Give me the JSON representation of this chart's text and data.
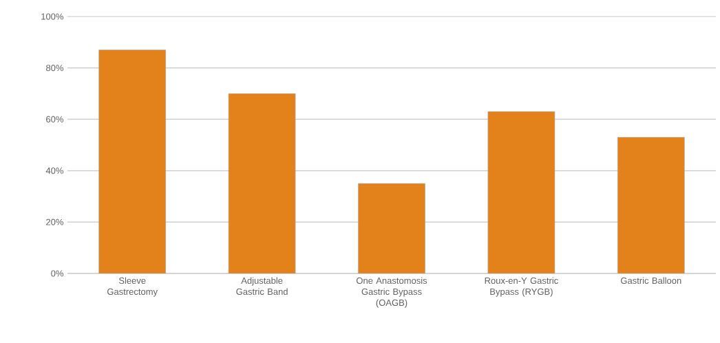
{
  "chart_data": {
    "type": "bar",
    "categories": [
      "Sleeve Gastrectomy",
      "Adjustable Gastric Band",
      "One Anastomosis Gastric Bypass (OAGB)",
      "Roux-en-Y Gastric Bypass (RYGB)",
      "Gastric Balloon"
    ],
    "values": [
      87,
      70,
      35,
      63,
      53
    ],
    "color": "#e3821a",
    "ylim": [
      0,
      100
    ],
    "yticks": [
      {
        "value": 0,
        "label": "0%"
      },
      {
        "value": 20,
        "label": "20%"
      },
      {
        "value": 40,
        "label": "40%"
      },
      {
        "value": 60,
        "label": "60%"
      },
      {
        "value": 80,
        "label": "80%"
      },
      {
        "value": 100,
        "label": "100%"
      }
    ],
    "grid": "y"
  }
}
